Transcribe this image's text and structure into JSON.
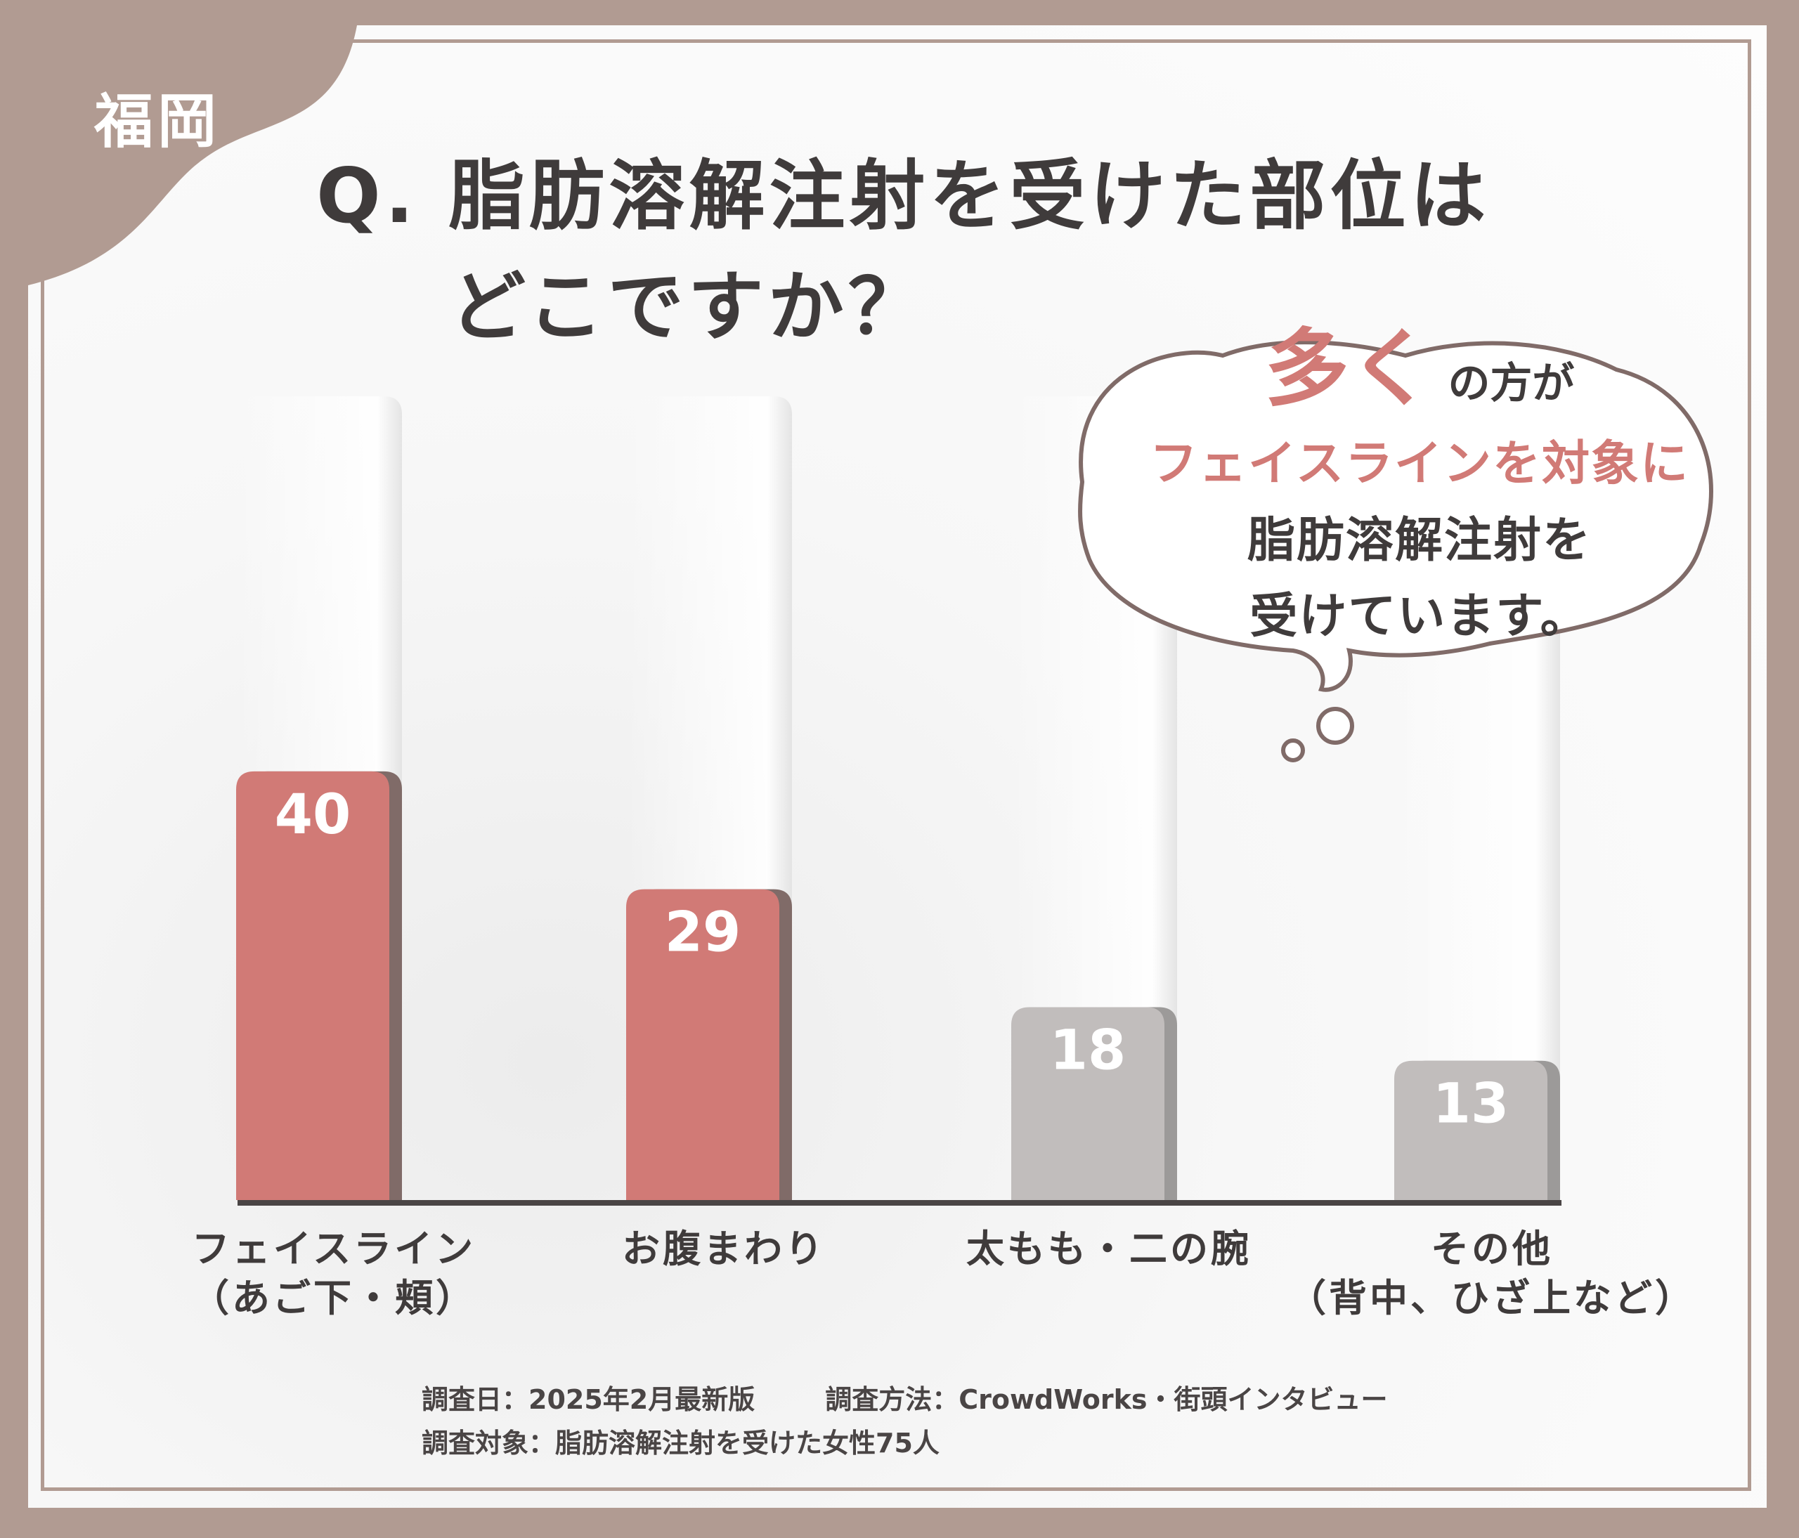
{
  "region_label": "福岡",
  "title": {
    "line1": "Q. 脂肪溶解注射を受けた部位は",
    "line2": "どこですか？"
  },
  "bubble": {
    "big": "多く",
    "line1_rest": "の方が",
    "line2": "フェイスラインを対象に",
    "line3": "脂肪溶解注射を",
    "line4": "受けています。"
  },
  "footnote": {
    "date": "調査日：2025年2月最新版",
    "method": "調査方法：CrowdWorks・街頭インタビュー",
    "target": "調査対象：脂肪溶解注射を受けた女性75人"
  },
  "colors": {
    "frame": "#b19b92",
    "highlight_bar": "#d17a76",
    "highlight_shadow": "#806b68",
    "gray_bar": "#c1bdbc",
    "gray_shadow": "#9c9a99",
    "text": "#3f3b3b"
  },
  "chart_data": {
    "type": "bar",
    "title": "Q. 脂肪溶解注射を受けた部位はどこですか？",
    "categories": [
      [
        "フェイスライン",
        "（あご下・頬）"
      ],
      [
        "お腹まわり"
      ],
      [
        "太もも・二の腕"
      ],
      [
        "その他",
        "（背中、ひざ上など）"
      ]
    ],
    "values": [
      40,
      29,
      18,
      13
    ],
    "highlighted": [
      true,
      true,
      false,
      false
    ],
    "ylim": [
      0,
      75
    ],
    "grid": false,
    "legend": "none"
  }
}
